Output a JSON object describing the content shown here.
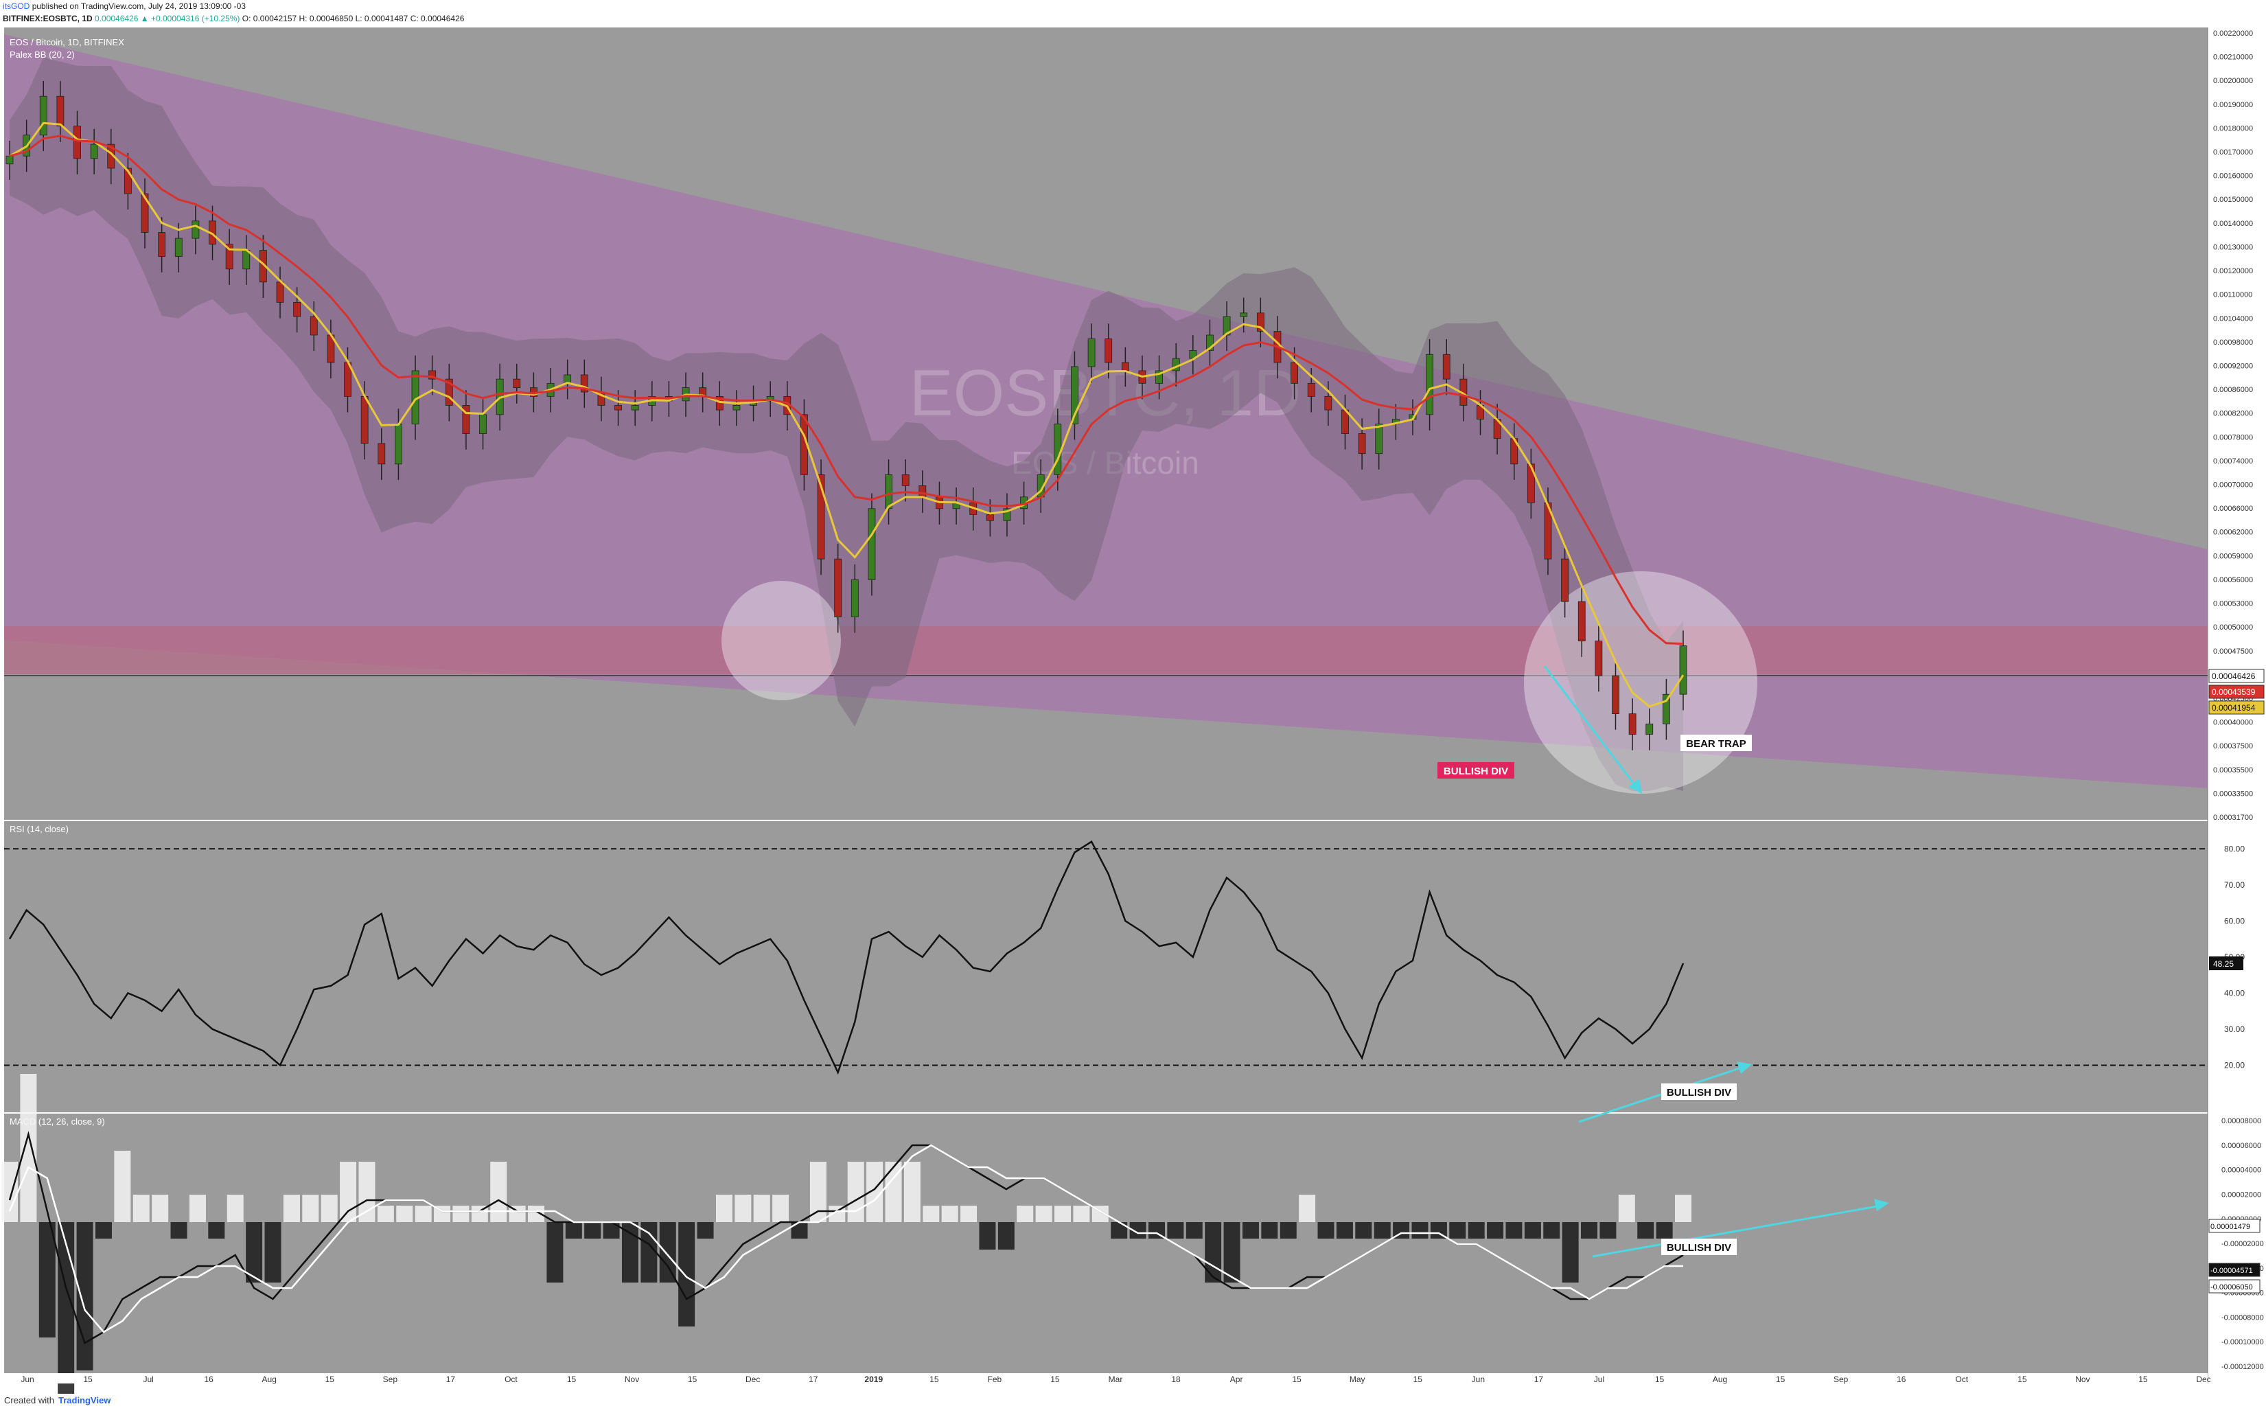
{
  "header": {
    "author": "itsGOD",
    "published_text": "published on TradingView.com, July 24, 2019 13:09:00 -03",
    "symbol": "BITFINEX:EOSBTC, 1D",
    "open": "O: 0.00042157",
    "high": "H: 0.00046850",
    "low": "L: 0.00041487",
    "close": "C: 0.00046426",
    "change": "0.00046426 ▲ +0.00004316 (+10.25%)"
  },
  "watermark": {
    "main": "EOSBTC, 1D",
    "sub": "EOS / Bitcoin"
  },
  "footer": {
    "created_with": "Created with",
    "brand": "TradingView"
  },
  "colors": {
    "panel_bg": "#9b9b9b",
    "channel_fill": "#a57ba8",
    "zone_fill": "#b46b86",
    "ema_fast": "#e8c83a",
    "ema_slow": "#d8322d",
    "bullish_label_bg": "#e0245e",
    "arrow": "#4fd6e0",
    "candle_up": "#3b7d23",
    "candle_down": "#b0271f"
  },
  "chart_data": [
    {
      "type": "candlestick",
      "title": "EOS / Bitcoin, 1D, BITFINEX",
      "indicator_label": "Palex BB (20, 2)",
      "ylim": [
        0.000317,
        0.00022
      ],
      "y_ticks": [
        "0.00220000",
        "0.00210000",
        "0.00200000",
        "0.00190000",
        "0.00180000",
        "0.00170000",
        "0.00160000",
        "0.00150000",
        "0.00140000",
        "0.00130000",
        "0.00120000",
        "0.00110000",
        "0.00104000",
        "0.00098000",
        "0.00092000",
        "0.00086000",
        "0.00082000",
        "0.00078000",
        "0.00074000",
        "0.00070000",
        "0.00066000",
        "0.00062000",
        "0.00059000",
        "0.00056000",
        "0.00053000",
        "0.00050000",
        "0.00047500",
        "0.00045000",
        "0.00042500",
        "0.00040000",
        "0.00037500",
        "0.00035500",
        "0.00033500",
        "0.00031700"
      ],
      "price_markers": [
        {
          "value": "0.00046426",
          "color": "#ffffff"
        },
        {
          "value": "0.00043539",
          "color": "#d8322d"
        },
        {
          "value": "0.00041954",
          "color": "#e8c83a"
        }
      ],
      "x_ticks": [
        "Jun",
        "15",
        "Jul",
        "16",
        "Aug",
        "15",
        "Sep",
        "17",
        "Oct",
        "15",
        "Nov",
        "15",
        "Dec",
        "17",
        "2019",
        "15",
        "Feb",
        "15",
        "Mar",
        "18",
        "Apr",
        "15",
        "May",
        "15",
        "Jun",
        "17",
        "Jul",
        "15",
        "Aug",
        "15",
        "Sep",
        "16",
        "Oct",
        "15",
        "Nov",
        "15",
        "Dec"
      ],
      "close_series": [
        0.00163,
        0.00172,
        0.0019,
        0.00176,
        0.00162,
        0.00168,
        0.00158,
        0.00148,
        0.00134,
        0.00126,
        0.00132,
        0.00138,
        0.0013,
        0.00122,
        0.00128,
        0.00118,
        0.00112,
        0.00108,
        0.00103,
        0.00096,
        0.00088,
        0.00078,
        0.00074,
        0.00082,
        0.00094,
        0.00092,
        0.00086,
        0.0008,
        0.00084,
        0.00092,
        0.0009,
        0.00088,
        0.00091,
        0.00093,
        0.00089,
        0.00086,
        0.00085,
        0.00086,
        0.00088,
        0.00087,
        0.0009,
        0.00088,
        0.00085,
        0.00086,
        0.00087,
        0.00088,
        0.00084,
        0.00072,
        0.00058,
        0.0005,
        0.00055,
        0.00066,
        0.00072,
        0.0007,
        0.00068,
        0.00066,
        0.00067,
        0.00065,
        0.00064,
        0.00066,
        0.00068,
        0.00072,
        0.00082,
        0.00095,
        0.00102,
        0.00096,
        0.00094,
        0.00091,
        0.00094,
        0.00097,
        0.00099,
        0.00103,
        0.00108,
        0.00109,
        0.00104,
        0.00096,
        0.00091,
        0.00088,
        0.00085,
        0.0008,
        0.00076,
        0.00082,
        0.00083,
        0.00084,
        0.00098,
        0.00092,
        0.00086,
        0.00083,
        0.00079,
        0.00074,
        0.00067,
        0.00058,
        0.00052,
        0.00047,
        0.00043,
        0.00039,
        0.00037,
        0.00038,
        0.00041,
        0.00046426
      ],
      "series": [
        {
          "name": "EMA fast",
          "color": "#e8c83a"
        },
        {
          "name": "EMA slow",
          "color": "#d8322d"
        }
      ],
      "annotations": [
        "BEAR TRAP",
        "BULLISH DIV"
      ]
    },
    {
      "type": "line",
      "title": "RSI (14, close)",
      "ylim": [
        10,
        85
      ],
      "y_ticks": [
        "80.00",
        "70.00",
        "60.00",
        "50.00",
        "40.00",
        "30.00",
        "20.00"
      ],
      "levels": [
        80,
        20
      ],
      "current_value": "48.25",
      "values": [
        55,
        63,
        59,
        52,
        45,
        37,
        33,
        40,
        38,
        35,
        41,
        34,
        30,
        28,
        26,
        24,
        20,
        30,
        41,
        42,
        45,
        59,
        62,
        44,
        47,
        42,
        49,
        55,
        51,
        56,
        53,
        52,
        56,
        54,
        48,
        45,
        47,
        51,
        56,
        61,
        56,
        52,
        48,
        51,
        53,
        55,
        49,
        38,
        28,
        18,
        32,
        55,
        57,
        53,
        50,
        56,
        52,
        47,
        46,
        51,
        54,
        58,
        69,
        79,
        82,
        73,
        60,
        57,
        53,
        54,
        50,
        63,
        72,
        68,
        62,
        52,
        49,
        46,
        40,
        30,
        22,
        37,
        46,
        49,
        68,
        56,
        52,
        49,
        45,
        43,
        39,
        31,
        22,
        29,
        33,
        30,
        26,
        30,
        37,
        48.25
      ],
      "annotations": [
        "BULLISH DIV"
      ]
    },
    {
      "type": "line",
      "title": "MACD (12, 26, close, 9)",
      "ylim": [
        -1.2e-05,
        8e-06
      ],
      "y_ticks": [
        "0.00008000",
        "0.00006000",
        "0.00004000",
        "0.00002000",
        "0.00000000",
        "-0.00002000",
        "-0.00004000",
        "-0.00006000",
        "-0.00008000",
        "-0.00010000",
        "-0.00012000"
      ],
      "markers": [
        {
          "value": "0.00001479",
          "color": "#ffffff"
        },
        {
          "value": "-0.00004571",
          "color": "#111111"
        },
        {
          "value": "-0.00006050",
          "color": "#ffffff"
        }
      ],
      "series": [
        {
          "name": "MACD",
          "color": "#111111",
          "values": [
            2,
            8,
            1,
            -6,
            -11,
            -10,
            -7,
            -6,
            -5,
            -5,
            -4,
            -4,
            -3,
            -6,
            -7,
            -5,
            -3,
            -1,
            1,
            2,
            2,
            2,
            2,
            1,
            1,
            1,
            2,
            1,
            1,
            0,
            0,
            0,
            0,
            -1,
            -2,
            -4,
            -7,
            -6,
            -4,
            -2,
            -1,
            0,
            0,
            1,
            1,
            2,
            3,
            5,
            7,
            7,
            6,
            5,
            4,
            3,
            4,
            4,
            3,
            2,
            1,
            0,
            -1,
            -1,
            -2,
            -3,
            -5,
            -6,
            -6,
            -6,
            -6,
            -5,
            -5,
            -4,
            -3,
            -2,
            -1,
            -1,
            -1,
            -2,
            -2,
            -3,
            -4,
            -5,
            -6,
            -7,
            -7,
            -6,
            -5,
            -5,
            -4,
            -3
          ]
        },
        {
          "name": "Signal",
          "color": "#ffffff",
          "values": [
            1,
            5,
            4,
            -2,
            -8,
            -10,
            -9,
            -7,
            -6,
            -5,
            -5,
            -4,
            -4,
            -5,
            -6,
            -6,
            -4,
            -2,
            0,
            1,
            2,
            2,
            2,
            1,
            1,
            1,
            1,
            1,
            1,
            1,
            0,
            0,
            0,
            0,
            -1,
            -3,
            -5,
            -6,
            -5,
            -3,
            -2,
            -1,
            0,
            0,
            1,
            1,
            2,
            4,
            6,
            7,
            6,
            5,
            5,
            4,
            4,
            4,
            3,
            2,
            1,
            0,
            -1,
            -1,
            -2,
            -3,
            -4,
            -5,
            -6,
            -6,
            -6,
            -6,
            -5,
            -4,
            -3,
            -2,
            -1,
            -1,
            -1,
            -2,
            -2,
            -3,
            -4,
            -5,
            -6,
            -6,
            -7,
            -6,
            -6,
            -5,
            -4,
            -4
          ]
        }
      ],
      "annotations": [
        "BULLISH DIV"
      ]
    }
  ]
}
